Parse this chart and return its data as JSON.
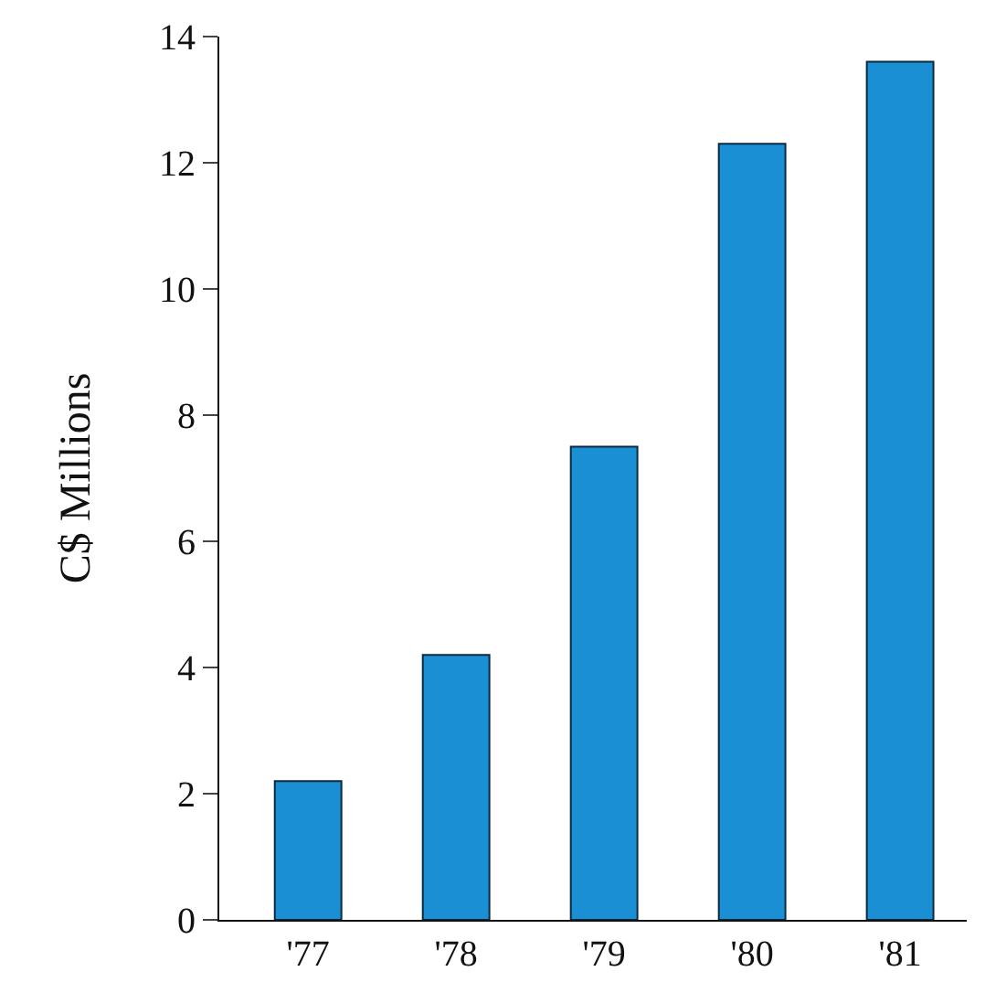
{
  "chart_data": {
    "type": "bar",
    "ylabel": "C$ Millions",
    "categories": [
      "'77",
      "'78",
      "'79",
      "'80",
      "'81"
    ],
    "values": [
      2.2,
      4.2,
      7.5,
      12.3,
      13.6
    ],
    "color": "#1a8fd3",
    "ylim": [
      0,
      14
    ],
    "yticks": [
      0,
      2,
      4,
      6,
      8,
      10,
      12,
      14
    ],
    "grid": false
  }
}
